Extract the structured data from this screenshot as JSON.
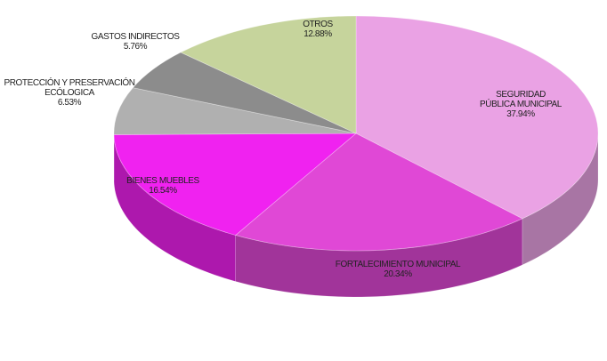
{
  "chart_data": {
    "type": "pie",
    "categories": [
      "SEGURIDAD PÚBLICA MUNICIPAL",
      "FORTALECIMIENTO MUNICIPAL",
      "BIENES MUEBLES",
      "PROTECCIÓN Y PRESERVACIÓN ECÓLOGICA",
      "GASTOS INDIRECTOS",
      "OTROS"
    ],
    "values": [
      37.94,
      20.34,
      16.54,
      6.53,
      5.76,
      12.88
    ],
    "value_labels": [
      "37.94%",
      "20.34%",
      "16.54%",
      "6.53%",
      "5.76%",
      "12.88%"
    ],
    "colors": [
      "#eaa2e4",
      "#e048d6",
      "#f022f0",
      "#b0b0b0",
      "#8c8c8c",
      "#c6d49c"
    ]
  }
}
